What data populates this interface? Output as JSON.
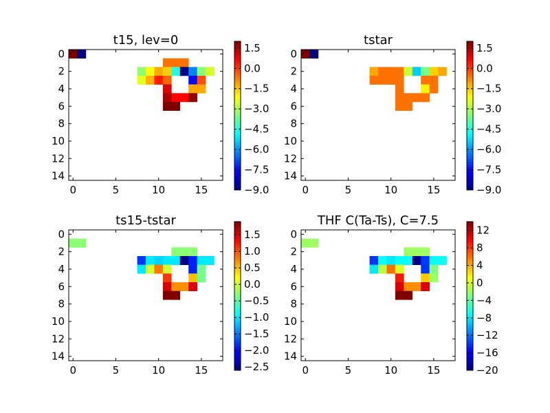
{
  "chart_data": [
    {
      "type": "heatmap",
      "title": "t15, lev=0",
      "xlim": [
        -0.5,
        17.5
      ],
      "ylim": [
        14.5,
        -0.5
      ],
      "xticks": [
        "0",
        "5",
        "10",
        "15"
      ],
      "yticks": [
        "0",
        "2",
        "4",
        "6",
        "8",
        "10",
        "12",
        "14"
      ],
      "colormap": "jet",
      "vmin": -9.0,
      "vmax": 2.0,
      "colorbar_ticks": [
        "1.5",
        "0.0",
        "−1.5",
        "−3.0",
        "−4.5",
        "−6.0",
        "−7.5",
        "−9.0"
      ],
      "cells": [
        [
          0,
          0,
          2.0
        ],
        [
          1,
          0,
          -9.0
        ],
        [
          11,
          1,
          -0.6
        ],
        [
          12,
          1,
          -0.6
        ],
        [
          13,
          1,
          -0.6
        ],
        [
          8,
          2,
          -3.3
        ],
        [
          9,
          2,
          -2.2
        ],
        [
          10,
          2,
          -1.2
        ],
        [
          11,
          2,
          -1.6
        ],
        [
          12,
          2,
          -4.5
        ],
        [
          13,
          2,
          -9.0
        ],
        [
          14,
          2,
          -6.2
        ],
        [
          15,
          2,
          -3.4
        ],
        [
          16,
          2,
          -2.6
        ],
        [
          8,
          3,
          -2.4
        ],
        [
          9,
          3,
          -1.3
        ],
        [
          10,
          3,
          0.3
        ],
        [
          11,
          3,
          -0.5
        ],
        [
          14,
          3,
          -7.5
        ],
        [
          15,
          3,
          -0.2
        ],
        [
          11,
          4,
          1.0
        ],
        [
          14,
          4,
          -1.2
        ],
        [
          15,
          4,
          -1.2
        ],
        [
          11,
          5,
          1.5
        ],
        [
          12,
          5,
          0.6
        ],
        [
          13,
          5,
          0.6
        ],
        [
          14,
          5,
          1.8
        ],
        [
          11,
          6,
          2.0
        ],
        [
          12,
          6,
          2.0
        ]
      ]
    },
    {
      "type": "heatmap",
      "title": "tstar",
      "xlim": [
        -0.5,
        17.5
      ],
      "ylim": [
        14.5,
        -0.5
      ],
      "xticks": [
        "0",
        "5",
        "10",
        "15"
      ],
      "yticks": [
        "0",
        "2",
        "4",
        "6",
        "8",
        "10",
        "12",
        "14"
      ],
      "colormap": "jet",
      "vmin": -9.0,
      "vmax": 2.0,
      "colorbar_ticks": [
        "1.5",
        "0.0",
        "−1.5",
        "−3.0",
        "−4.5",
        "−6.0",
        "−7.5",
        "−9.0"
      ],
      "cells": [
        [
          0,
          0,
          2.0
        ],
        [
          1,
          0,
          -9.0
        ],
        [
          8,
          2,
          -1.2
        ],
        [
          9,
          2,
          -0.6
        ],
        [
          10,
          2,
          -0.6
        ],
        [
          11,
          2,
          -0.6
        ],
        [
          12,
          2,
          -2.6
        ],
        [
          13,
          2,
          -5.4
        ],
        [
          14,
          2,
          -3.6
        ],
        [
          15,
          2,
          -1.6
        ],
        [
          16,
          2,
          -1.2
        ],
        [
          8,
          3,
          -0.6
        ],
        [
          9,
          3,
          -0.6
        ],
        [
          10,
          3,
          -0.6
        ],
        [
          11,
          3,
          -0.6
        ],
        [
          14,
          3,
          -0.6
        ],
        [
          15,
          3,
          -0.6
        ],
        [
          11,
          4,
          -0.6
        ],
        [
          14,
          4,
          -2.0
        ],
        [
          15,
          4,
          -0.6
        ],
        [
          11,
          5,
          -0.6
        ],
        [
          12,
          5,
          -0.6
        ],
        [
          13,
          5,
          -0.6
        ],
        [
          14,
          5,
          -0.6
        ],
        [
          11,
          6,
          -0.6
        ],
        [
          12,
          6,
          -0.6
        ]
      ]
    },
    {
      "type": "heatmap",
      "title": "ts15-tstar",
      "xlim": [
        -0.5,
        17.5
      ],
      "ylim": [
        14.5,
        -0.5
      ],
      "xticks": [
        "0",
        "5",
        "10",
        "15"
      ],
      "yticks": [
        "0",
        "2",
        "4",
        "6",
        "8",
        "10",
        "12",
        "14"
      ],
      "colormap": "jet",
      "vmin": -2.6,
      "vmax": 1.9,
      "colorbar_ticks": [
        "1.5",
        "1.0",
        "0.5",
        "0.0",
        "−0.5",
        "−1.0",
        "−1.5",
        "−2.0",
        "−2.5"
      ],
      "cells": [
        [
          0,
          1,
          -0.3
        ],
        [
          1,
          1,
          -0.3
        ],
        [
          12,
          2,
          -0.3
        ],
        [
          13,
          2,
          -0.3
        ],
        [
          14,
          2,
          -0.3
        ],
        [
          8,
          3,
          -1.8
        ],
        [
          9,
          3,
          -1.0
        ],
        [
          10,
          3,
          -1.1
        ],
        [
          11,
          3,
          -1.0
        ],
        [
          12,
          3,
          -1.0
        ],
        [
          13,
          3,
          -2.6
        ],
        [
          14,
          3,
          -1.9
        ],
        [
          15,
          3,
          -1.0
        ],
        [
          16,
          3,
          -1.0
        ],
        [
          8,
          4,
          -1.0
        ],
        [
          9,
          4,
          0.0
        ],
        [
          10,
          4,
          0.8
        ],
        [
          11,
          4,
          0.0
        ],
        [
          14,
          4,
          -1.9
        ],
        [
          15,
          4,
          -0.4
        ],
        [
          11,
          5,
          1.1
        ],
        [
          14,
          5,
          0.5
        ],
        [
          15,
          5,
          -0.4
        ],
        [
          11,
          6,
          1.5
        ],
        [
          12,
          6,
          0.7
        ],
        [
          13,
          6,
          0.7
        ],
        [
          14,
          6,
          1.5
        ],
        [
          11,
          7,
          1.9
        ],
        [
          12,
          7,
          1.9
        ]
      ]
    },
    {
      "type": "heatmap",
      "title": "THF C(Ta-Ts), C=7.5",
      "xlim": [
        -0.5,
        17.5
      ],
      "ylim": [
        14.5,
        -0.5
      ],
      "xticks": [
        "0",
        "5",
        "10",
        "15"
      ],
      "yticks": [
        "0",
        "2",
        "4",
        "6",
        "8",
        "10",
        "12",
        "14"
      ],
      "colormap": "jet",
      "vmin": -20,
      "vmax": 14,
      "colorbar_ticks": [
        "12",
        "8",
        "4",
        "0",
        "−4",
        "−8",
        "−12",
        "−16",
        "−20"
      ],
      "cells": [
        [
          0,
          1,
          -2
        ],
        [
          1,
          1,
          -2
        ],
        [
          12,
          2,
          -2
        ],
        [
          13,
          2,
          -2
        ],
        [
          14,
          2,
          -2
        ],
        [
          8,
          3,
          -14
        ],
        [
          9,
          3,
          -7
        ],
        [
          10,
          3,
          -8
        ],
        [
          11,
          3,
          -7
        ],
        [
          12,
          3,
          -7
        ],
        [
          13,
          3,
          -20
        ],
        [
          14,
          3,
          -14
        ],
        [
          15,
          3,
          -7
        ],
        [
          16,
          3,
          -7
        ],
        [
          8,
          4,
          -8
        ],
        [
          9,
          4,
          -1
        ],
        [
          10,
          4,
          6
        ],
        [
          11,
          4,
          0
        ],
        [
          14,
          4,
          -14
        ],
        [
          15,
          4,
          -3
        ],
        [
          11,
          5,
          9
        ],
        [
          14,
          5,
          3
        ],
        [
          15,
          5,
          -2
        ],
        [
          11,
          6,
          11
        ],
        [
          12,
          6,
          5
        ],
        [
          13,
          6,
          5
        ],
        [
          14,
          6,
          11
        ],
        [
          11,
          7,
          14
        ],
        [
          12,
          7,
          14
        ]
      ]
    }
  ]
}
